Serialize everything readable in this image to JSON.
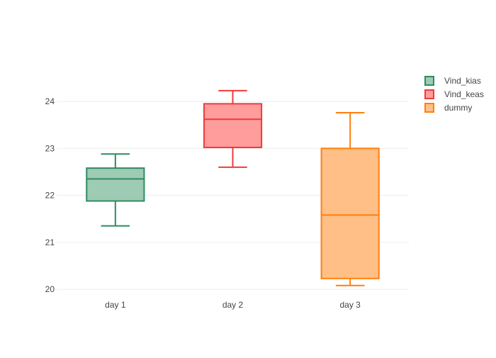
{
  "chart_data": {
    "type": "box",
    "title": "",
    "xlabel": "",
    "ylabel": "",
    "categories": [
      "day 1",
      "day 2",
      "day 3"
    ],
    "y_ticks": [
      20,
      21,
      22,
      23,
      24
    ],
    "ylim": [
      19.85,
      24.65
    ],
    "grid": true,
    "legend_position": "top-right",
    "series": [
      {
        "name": "Vind_kias",
        "category": "day 1",
        "color": "#2e8b62",
        "fill": "#9ecbb4",
        "whisker_low": 21.35,
        "q1": 21.88,
        "median": 22.35,
        "q3": 22.58,
        "whisker_high": 22.88
      },
      {
        "name": "Vind_keas",
        "category": "day 2",
        "color": "#ef3b3b",
        "fill": "#ff9c9c",
        "whisker_low": 22.6,
        "q1": 23.02,
        "median": 23.62,
        "q3": 23.95,
        "whisker_high": 24.23
      },
      {
        "name": "dummy",
        "category": "day 3",
        "color": "#ff7f0e",
        "fill": "#ffbf86",
        "whisker_low": 20.08,
        "q1": 20.23,
        "median": 21.58,
        "q3": 23.0,
        "whisker_high": 23.76
      }
    ]
  }
}
